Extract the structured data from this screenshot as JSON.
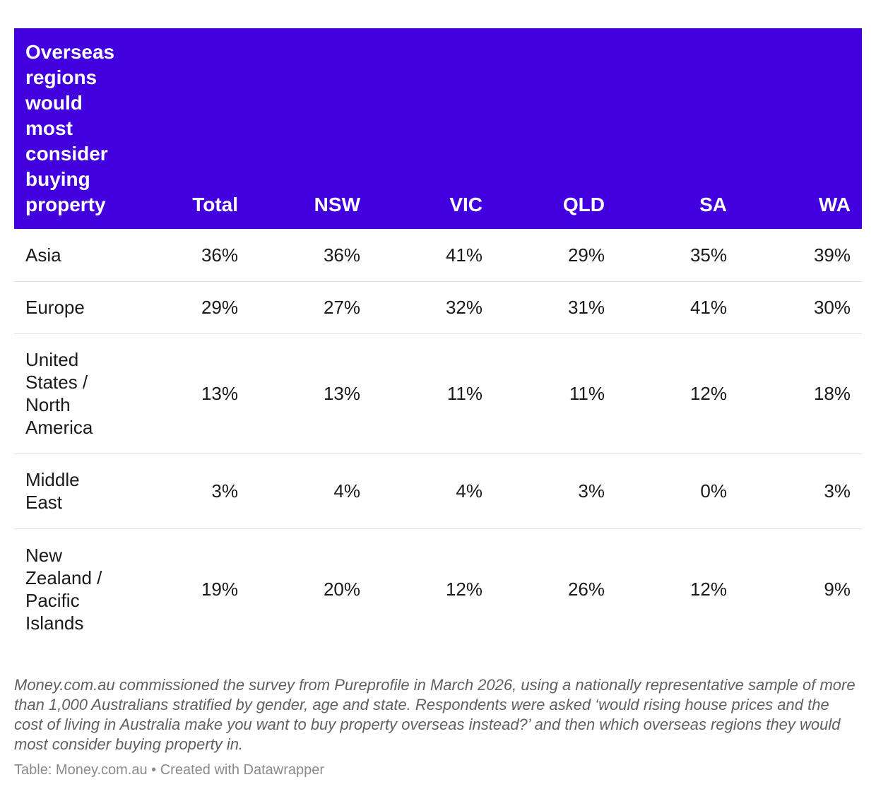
{
  "chart_data": {
    "type": "table",
    "columns": [
      "Overseas regions would most consider buying property",
      "Total",
      "NSW",
      "VIC",
      "QLD",
      "SA",
      "WA"
    ],
    "rows": [
      {
        "label": "Asia",
        "values": [
          "36%",
          "36%",
          "41%",
          "29%",
          "35%",
          "39%"
        ]
      },
      {
        "label": "Europe",
        "values": [
          "29%",
          "27%",
          "32%",
          "31%",
          "41%",
          "30%"
        ]
      },
      {
        "label": "United States / North America",
        "values": [
          "13%",
          "13%",
          "11%",
          "11%",
          "12%",
          "18%"
        ]
      },
      {
        "label": "Middle East",
        "values": [
          "3%",
          "4%",
          "4%",
          "3%",
          "0%",
          "3%"
        ]
      },
      {
        "label": "New Zealand / Pacific Islands",
        "values": [
          "19%",
          "20%",
          "12%",
          "26%",
          "12%",
          "9%"
        ]
      }
    ],
    "header_color": "#4300df"
  },
  "notes": "Money.com.au commissioned the survey from Pureprofile in March 2026, using a nationally representative sample of more than 1,000 Australians stratified by gender, age and state. Respondents were asked ‘would rising house prices and the cost of living in Australia make you want to buy property overseas instead?’ and then which overseas regions they would most consider buying property in.",
  "byline": "Table: Money.com.au • Created with Datawrapper"
}
